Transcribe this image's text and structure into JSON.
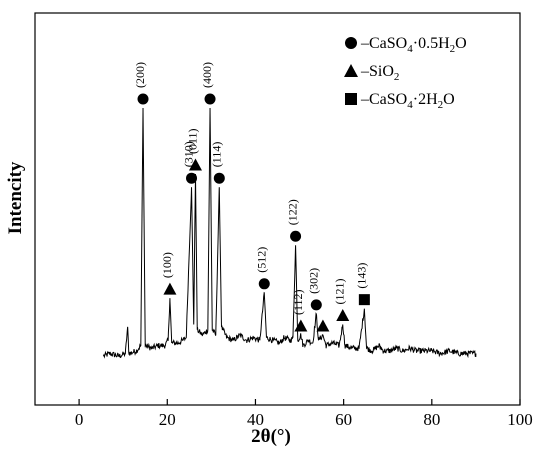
{
  "chart_data": {
    "type": "line",
    "title": "",
    "xlabel": "2θ(°)",
    "ylabel": "Intencity",
    "xlim": [
      -10,
      100
    ],
    "xticks": [
      0,
      20,
      40,
      60,
      80,
      100
    ],
    "x_tick_labels": [
      "0",
      "20",
      "40",
      "60",
      "80",
      "100"
    ],
    "y_ticks_shown": false,
    "grid": false,
    "legend_position": "top-right",
    "legend": [
      {
        "marker": "circle",
        "label": "–CaSO",
        "sub1": "4",
        "mid": "·0.5H",
        "sub2": "2",
        "tail": "O"
      },
      {
        "marker": "triangle",
        "label": "–SiO",
        "sub1": "2",
        "mid": "",
        "sub2": "",
        "tail": ""
      },
      {
        "marker": "square",
        "label": "–CaSO",
        "sub1": "4",
        "mid": "·2H",
        "sub2": "2",
        "tail": "O"
      }
    ],
    "series": [
      {
        "pattern": [
          [
            5.5,
            0.06
          ],
          [
            7,
            0.07
          ],
          [
            9,
            0.06
          ],
          [
            10.5,
            0.07
          ],
          [
            11.0,
            0.17
          ],
          [
            11.3,
            0.07
          ],
          [
            13,
            0.08
          ],
          [
            14.0,
            0.1
          ],
          [
            14.5,
            1.0
          ],
          [
            15.0,
            0.1
          ],
          [
            16.5,
            0.09
          ],
          [
            18,
            0.1
          ],
          [
            19.5,
            0.1
          ],
          [
            20.2,
            0.12
          ],
          [
            20.6,
            0.28
          ],
          [
            21.0,
            0.11
          ],
          [
            22.5,
            0.11
          ],
          [
            23.5,
            0.12
          ],
          [
            24.3,
            0.13
          ],
          [
            25.5,
            0.7
          ],
          [
            26.0,
            0.18
          ],
          [
            26.4,
            0.75
          ],
          [
            26.8,
            0.16
          ],
          [
            28.0,
            0.14
          ],
          [
            29.2,
            0.16
          ],
          [
            29.7,
            1.0
          ],
          [
            30.2,
            0.16
          ],
          [
            31.0,
            0.14
          ],
          [
            31.8,
            0.7
          ],
          [
            32.3,
            0.17
          ],
          [
            33.5,
            0.13
          ],
          [
            35.0,
            0.12
          ],
          [
            36.5,
            0.14
          ],
          [
            38.0,
            0.12
          ],
          [
            39.5,
            0.13
          ],
          [
            41.0,
            0.12
          ],
          [
            42.0,
            0.3
          ],
          [
            42.5,
            0.13
          ],
          [
            44.0,
            0.12
          ],
          [
            45.5,
            0.11
          ],
          [
            46.5,
            0.13
          ],
          [
            48.0,
            0.12
          ],
          [
            48.5,
            0.13
          ],
          [
            49.1,
            0.48
          ],
          [
            49.6,
            0.12
          ],
          [
            50.3,
            0.14
          ],
          [
            50.8,
            0.1
          ],
          [
            52.0,
            0.12
          ],
          [
            53.0,
            0.11
          ],
          [
            53.8,
            0.22
          ],
          [
            54.3,
            0.12
          ],
          [
            55.3,
            0.14
          ],
          [
            56.0,
            0.1
          ],
          [
            57.5,
            0.11
          ],
          [
            59.0,
            0.1
          ],
          [
            59.8,
            0.18
          ],
          [
            60.3,
            0.1
          ],
          [
            62.0,
            0.09
          ],
          [
            63.5,
            0.09
          ],
          [
            64.7,
            0.24
          ],
          [
            65.2,
            0.09
          ],
          [
            66.5,
            0.08
          ],
          [
            68.0,
            0.1
          ],
          [
            69.0,
            0.08
          ],
          [
            70.5,
            0.08
          ],
          [
            72.0,
            0.09
          ],
          [
            73.5,
            0.08
          ],
          [
            75.0,
            0.09
          ],
          [
            76.5,
            0.08
          ],
          [
            78.0,
            0.08
          ],
          [
            80.0,
            0.08
          ],
          [
            82.0,
            0.07
          ],
          [
            84.0,
            0.08
          ],
          [
            86.0,
            0.07
          ],
          [
            88.0,
            0.07
          ],
          [
            90.0,
            0.07
          ]
        ]
      }
    ],
    "peak_annotations": [
      {
        "x": 14.5,
        "y": 1.0,
        "marker": "circle",
        "label": "(200)"
      },
      {
        "x": 20.6,
        "y": 0.28,
        "marker": "triangle",
        "label": "(100)"
      },
      {
        "x": 25.5,
        "y": 0.7,
        "marker": "circle",
        "label": "(310)"
      },
      {
        "x": 26.4,
        "y": 0.75,
        "marker": "triangle",
        "label": "(011)"
      },
      {
        "x": 29.7,
        "y": 1.0,
        "marker": "circle",
        "label": "(400)"
      },
      {
        "x": 31.8,
        "y": 0.7,
        "marker": "circle",
        "label": "(114)"
      },
      {
        "x": 42.0,
        "y": 0.3,
        "marker": "circle",
        "label": "(512)"
      },
      {
        "x": 49.1,
        "y": 0.48,
        "marker": "circle",
        "label": "(122)"
      },
      {
        "x": 50.3,
        "y": 0.14,
        "marker": "triangle",
        "label": "(112)"
      },
      {
        "x": 53.8,
        "y": 0.22,
        "marker": "circle",
        "label": "(302)"
      },
      {
        "x": 55.3,
        "y": 0.14,
        "marker": "triangle",
        "label": ""
      },
      {
        "x": 59.8,
        "y": 0.18,
        "marker": "triangle",
        "label": "(121)"
      },
      {
        "x": 64.7,
        "y": 0.24,
        "marker": "square",
        "label": "(143)"
      }
    ]
  }
}
